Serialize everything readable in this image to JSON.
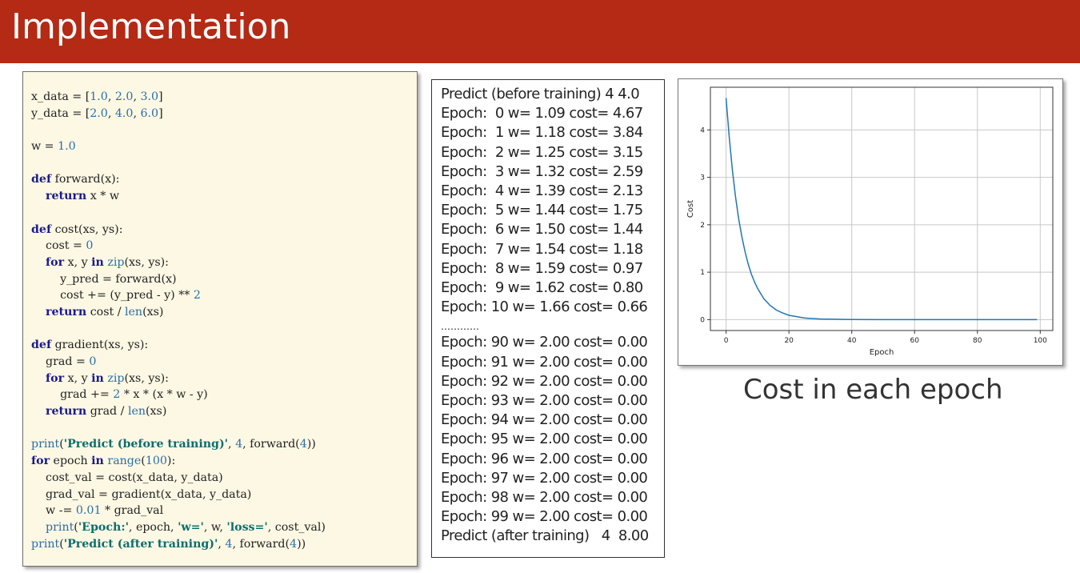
{
  "slide_title": "Implementation",
  "code_lines": [
    [
      [
        "x_data = [",
        "t"
      ],
      [
        "1.0",
        "num"
      ],
      [
        ", ",
        "t"
      ],
      [
        "2.0",
        "num"
      ],
      [
        ", ",
        "t"
      ],
      [
        "3.0",
        "num"
      ],
      [
        "]",
        "t"
      ]
    ],
    [
      [
        "y_data = [",
        "t"
      ],
      [
        "2.0",
        "num"
      ],
      [
        ", ",
        "t"
      ],
      [
        "4.0",
        "num"
      ],
      [
        ", ",
        "t"
      ],
      [
        "6.0",
        "num"
      ],
      [
        "]",
        "t"
      ]
    ],
    [],
    [
      [
        "w = ",
        "t"
      ],
      [
        "1.0",
        "num"
      ]
    ],
    [],
    [
      [
        "def",
        "kw"
      ],
      [
        " forward(x):",
        "t"
      ]
    ],
    [
      [
        "    ",
        "t"
      ],
      [
        "return",
        "kw"
      ],
      [
        " x * w",
        "t"
      ]
    ],
    [],
    [
      [
        "def",
        "kw"
      ],
      [
        " cost(xs, ys):",
        "t"
      ]
    ],
    [
      [
        "    cost = ",
        "t"
      ],
      [
        "0",
        "num"
      ]
    ],
    [
      [
        "    ",
        "t"
      ],
      [
        "for",
        "kw"
      ],
      [
        " x, y ",
        "t"
      ],
      [
        "in",
        "kw"
      ],
      [
        " ",
        "t"
      ],
      [
        "zip",
        "fn"
      ],
      [
        "(xs, ys):",
        "t"
      ]
    ],
    [
      [
        "        y_pred = forward(x)",
        "t"
      ]
    ],
    [
      [
        "        cost += (y_pred - y) ** ",
        "t"
      ],
      [
        "2",
        "num"
      ]
    ],
    [
      [
        "    ",
        "t"
      ],
      [
        "return",
        "kw"
      ],
      [
        " cost / ",
        "t"
      ],
      [
        "len",
        "fn"
      ],
      [
        "(xs)",
        "t"
      ]
    ],
    [],
    [
      [
        "def",
        "kw"
      ],
      [
        " gradient(xs, ys):",
        "t"
      ]
    ],
    [
      [
        "    grad = ",
        "t"
      ],
      [
        "0",
        "num"
      ]
    ],
    [
      [
        "    ",
        "t"
      ],
      [
        "for",
        "kw"
      ],
      [
        " x, y ",
        "t"
      ],
      [
        "in",
        "kw"
      ],
      [
        " ",
        "t"
      ],
      [
        "zip",
        "fn"
      ],
      [
        "(xs, ys):",
        "t"
      ]
    ],
    [
      [
        "        grad += ",
        "t"
      ],
      [
        "2",
        "num"
      ],
      [
        " * x * (x * w - y)",
        "t"
      ]
    ],
    [
      [
        "    ",
        "t"
      ],
      [
        "return",
        "kw"
      ],
      [
        " grad / ",
        "t"
      ],
      [
        "len",
        "fn"
      ],
      [
        "(xs)",
        "t"
      ]
    ],
    [],
    [
      [
        "print",
        "fn"
      ],
      [
        "(",
        "t"
      ],
      [
        "'Predict (before training)'",
        "str"
      ],
      [
        ", ",
        "t"
      ],
      [
        "4",
        "num"
      ],
      [
        ", forward(",
        "t"
      ],
      [
        "4",
        "num"
      ],
      [
        "))",
        "t"
      ]
    ],
    [
      [
        "for",
        "kw"
      ],
      [
        " epoch ",
        "t"
      ],
      [
        "in",
        "kw"
      ],
      [
        " ",
        "t"
      ],
      [
        "range",
        "fn"
      ],
      [
        "(",
        "t"
      ],
      [
        "100",
        "num"
      ],
      [
        "):",
        "t"
      ]
    ],
    [
      [
        "    cost_val = cost(x_data, y_data)",
        "t"
      ]
    ],
    [
      [
        "    grad_val = gradient(x_data, y_data)",
        "t"
      ]
    ],
    [
      [
        "    w -= ",
        "t"
      ],
      [
        "0.01",
        "num"
      ],
      [
        " * grad_val",
        "t"
      ]
    ],
    [
      [
        "    ",
        "t"
      ],
      [
        "print",
        "fn"
      ],
      [
        "(",
        "t"
      ],
      [
        "'Epoch:'",
        "str"
      ],
      [
        ", epoch, ",
        "t"
      ],
      [
        "'w='",
        "str"
      ],
      [
        ", w, ",
        "t"
      ],
      [
        "'loss='",
        "str"
      ],
      [
        ", cost_val)",
        "t"
      ]
    ],
    [
      [
        "print",
        "fn"
      ],
      [
        "(",
        "t"
      ],
      [
        "'Predict (after training)'",
        "str"
      ],
      [
        ", ",
        "t"
      ],
      [
        "4",
        "num"
      ],
      [
        ", forward(",
        "t"
      ],
      [
        "4",
        "num"
      ],
      [
        "))",
        "t"
      ]
    ]
  ],
  "output_lines": [
    "Predict (before training) 4 4.0",
    "Epoch:  0 w= 1.09 cost= 4.67",
    "Epoch:  1 w= 1.18 cost= 3.84",
    "Epoch:  2 w= 1.25 cost= 3.15",
    "Epoch:  3 w= 1.32 cost= 2.59",
    "Epoch:  4 w= 1.39 cost= 2.13",
    "Epoch:  5 w= 1.44 cost= 1.75",
    "Epoch:  6 w= 1.50 cost= 1.44",
    "Epoch:  7 w= 1.54 cost= 1.18",
    "Epoch:  8 w= 1.59 cost= 0.97",
    "Epoch:  9 w= 1.62 cost= 0.80",
    "Epoch: 10 w= 1.66 cost= 0.66",
    "…………",
    "Epoch: 90 w= 2.00 cost= 0.00",
    "Epoch: 91 w= 2.00 cost= 0.00",
    "Epoch: 92 w= 2.00 cost= 0.00",
    "Epoch: 93 w= 2.00 cost= 0.00",
    "Epoch: 94 w= 2.00 cost= 0.00",
    "Epoch: 95 w= 2.00 cost= 0.00",
    "Epoch: 96 w= 2.00 cost= 0.00",
    "Epoch: 97 w= 2.00 cost= 0.00",
    "Epoch: 98 w= 2.00 cost= 0.00",
    "Epoch: 99 w= 2.00 cost= 0.00",
    "Predict (after training)   4  8.00"
  ],
  "caption": "Cost in each epoch",
  "colors": {
    "title_bar": "#b52a14",
    "code_bg": "#fdf8e4",
    "line": "#1f77b4"
  },
  "chart_data": {
    "type": "line",
    "xlabel": "Epoch",
    "ylabel": "Cost",
    "xlim": [
      -5,
      104
    ],
    "ylim": [
      -0.23,
      4.9
    ],
    "xticks": [
      0,
      20,
      40,
      60,
      80,
      100
    ],
    "yticks": [
      0,
      1,
      2,
      3,
      4
    ],
    "grid": true,
    "series": [
      {
        "x": [
          0,
          1,
          2,
          3,
          4,
          5,
          6,
          7,
          8,
          9,
          10,
          12,
          14,
          16,
          18,
          20,
          25,
          30,
          40,
          50,
          60,
          70,
          80,
          90,
          99
        ],
        "values": [
          4.67,
          3.84,
          3.15,
          2.59,
          2.13,
          1.75,
          1.44,
          1.18,
          0.97,
          0.8,
          0.66,
          0.44,
          0.3,
          0.2,
          0.14,
          0.09,
          0.034,
          0.013,
          0.002,
          0.0003,
          0.0,
          0.0,
          0.0,
          0.0,
          0.0
        ]
      }
    ]
  }
}
